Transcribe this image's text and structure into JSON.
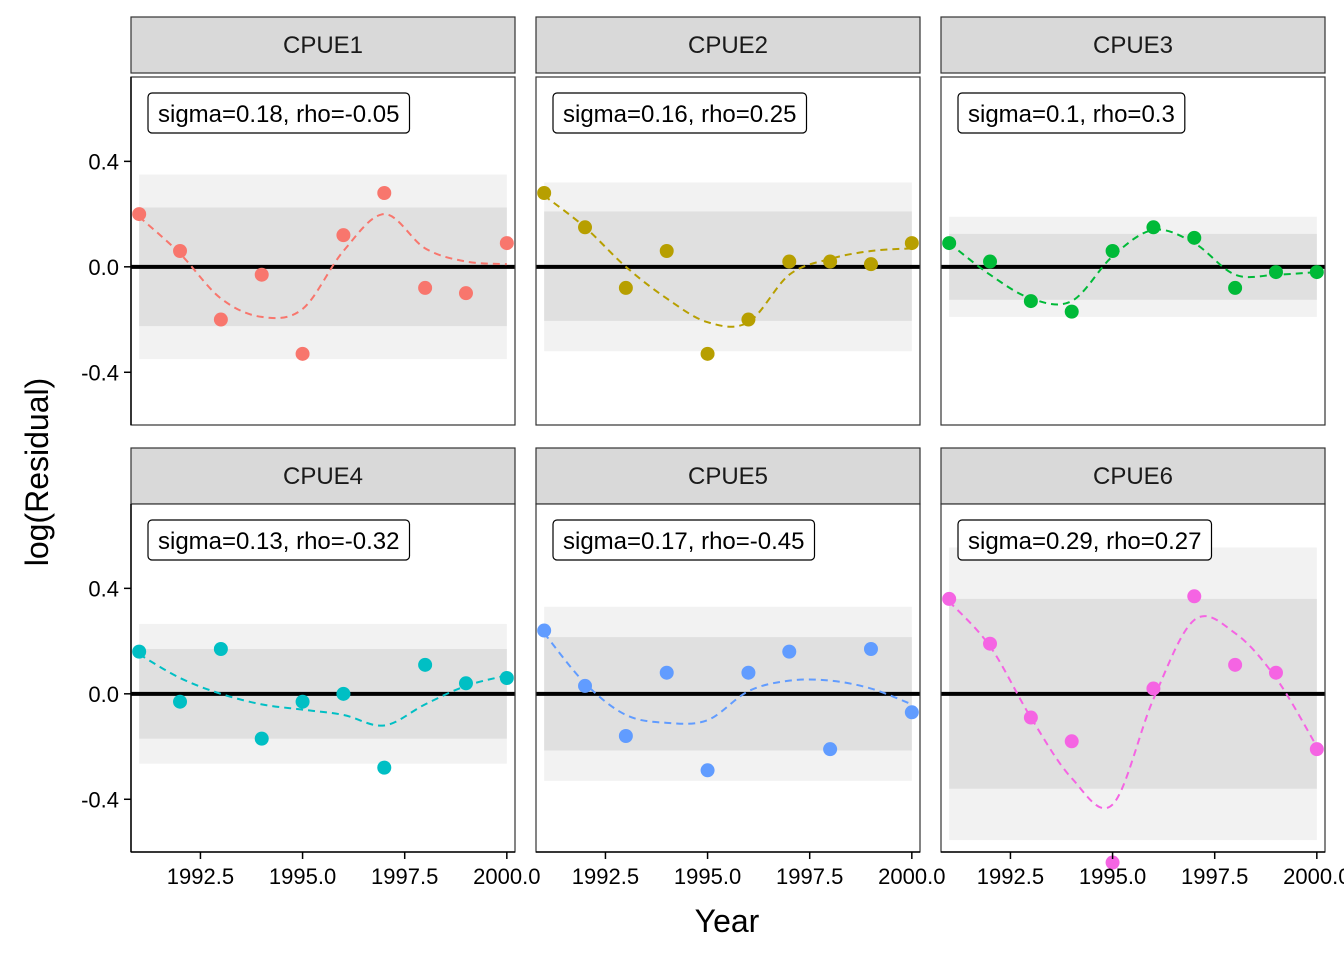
{
  "chart_data": {
    "type": "scatter",
    "xlabel": "Year",
    "ylabel": "log(Residual)",
    "xlim": [
      1990.8,
      2000.2
    ],
    "ylim": [
      -0.6,
      0.72
    ],
    "x_ticks": [
      1992.5,
      1995.0,
      1997.5,
      2000.0
    ],
    "x_tick_labels": [
      "1992.5",
      "1995.0",
      "1997.5",
      "2000.0"
    ],
    "y_ticks": [
      0.4,
      0.0,
      -0.4
    ],
    "y_tick_labels": [
      "0.4",
      "0.0",
      "-0.4"
    ],
    "grid": false,
    "reference_line": 0,
    "panels": [
      {
        "label": "CPUE1",
        "annotation": "sigma=0.18, rho=-0.05",
        "color": "#F8766D",
        "x": [
          1991,
          1992,
          1993,
          1994,
          1995,
          1996,
          1997,
          1998,
          1999,
          2000
        ],
        "y": [
          0.2,
          0.06,
          -0.2,
          -0.03,
          -0.33,
          0.12,
          0.28,
          -0.08,
          -0.1,
          0.09
        ],
        "smooth": [
          0.19,
          0.05,
          -0.12,
          -0.19,
          -0.16,
          0.06,
          0.2,
          0.07,
          0.02,
          0.01
        ],
        "band_inner": [
          -0.225,
          0.225
        ],
        "band_outer": [
          -0.35,
          0.35
        ]
      },
      {
        "label": "CPUE2",
        "annotation": "sigma=0.16, rho=0.25",
        "color": "#B79F00",
        "x": [
          1991,
          1992,
          1993,
          1994,
          1995,
          1996,
          1997,
          1998,
          1999,
          2000
        ],
        "y": [
          0.28,
          0.15,
          -0.08,
          0.06,
          -0.33,
          -0.2,
          0.02,
          0.02,
          0.01,
          0.09
        ],
        "smooth": [
          0.27,
          0.15,
          0.0,
          -0.12,
          -0.21,
          -0.21,
          -0.03,
          0.03,
          0.06,
          0.07
        ],
        "band_inner": [
          -0.205,
          0.21
        ],
        "band_outer": [
          -0.32,
          0.32
        ]
      },
      {
        "label": "CPUE3",
        "annotation": "sigma=0.1, rho=0.3",
        "color": "#00BA38",
        "x": [
          1991,
          1992,
          1993,
          1994,
          1995,
          1996,
          1997,
          1998,
          1999,
          2000
        ],
        "y": [
          0.09,
          0.02,
          -0.13,
          -0.17,
          0.06,
          0.15,
          0.11,
          -0.08,
          -0.02,
          -0.02
        ],
        "smooth": [
          0.09,
          -0.03,
          -0.12,
          -0.13,
          0.04,
          0.14,
          0.09,
          -0.03,
          -0.03,
          -0.02
        ],
        "band_inner": [
          -0.125,
          0.125
        ],
        "band_outer": [
          -0.19,
          0.19
        ]
      },
      {
        "label": "CPUE4",
        "annotation": "sigma=0.13, rho=-0.32",
        "color": "#00BFC4",
        "x": [
          1991,
          1992,
          1993,
          1994,
          1995,
          1996,
          1997,
          1998,
          1999,
          2000
        ],
        "y": [
          0.16,
          -0.03,
          0.17,
          -0.17,
          -0.03,
          0.0,
          -0.28,
          0.11,
          0.04,
          0.06
        ],
        "smooth": [
          0.15,
          0.06,
          0.0,
          -0.04,
          -0.06,
          -0.08,
          -0.12,
          -0.04,
          0.03,
          0.07
        ],
        "band_inner": [
          -0.17,
          0.17
        ],
        "band_outer": [
          -0.265,
          0.265
        ]
      },
      {
        "label": "CPUE5",
        "annotation": "sigma=0.17, rho=-0.45",
        "color": "#619CFF",
        "x": [
          1991,
          1992,
          1993,
          1994,
          1995,
          1996,
          1997,
          1998,
          1999,
          2000
        ],
        "y": [
          0.24,
          0.03,
          -0.16,
          0.08,
          -0.29,
          0.08,
          0.16,
          -0.21,
          0.17,
          -0.07
        ],
        "smooth": [
          0.23,
          0.04,
          -0.08,
          -0.11,
          -0.1,
          0.01,
          0.05,
          0.05,
          0.02,
          -0.04
        ],
        "band_inner": [
          -0.215,
          0.215
        ],
        "band_outer": [
          -0.33,
          0.33
        ]
      },
      {
        "label": "CPUE6",
        "annotation": "sigma=0.29, rho=0.27",
        "color": "#F564E3",
        "x": [
          1991,
          1992,
          1993,
          1994,
          1995,
          1996,
          1997,
          1998,
          1999,
          2000
        ],
        "y": [
          0.36,
          0.19,
          -0.09,
          -0.18,
          -0.64,
          0.02,
          0.37,
          0.11,
          0.08,
          -0.21
        ],
        "smooth": [
          0.35,
          0.18,
          -0.09,
          -0.32,
          -0.42,
          -0.02,
          0.28,
          0.23,
          0.06,
          -0.2
        ],
        "band_inner": [
          -0.36,
          0.36
        ],
        "band_outer": [
          -0.555,
          0.555
        ]
      }
    ]
  }
}
